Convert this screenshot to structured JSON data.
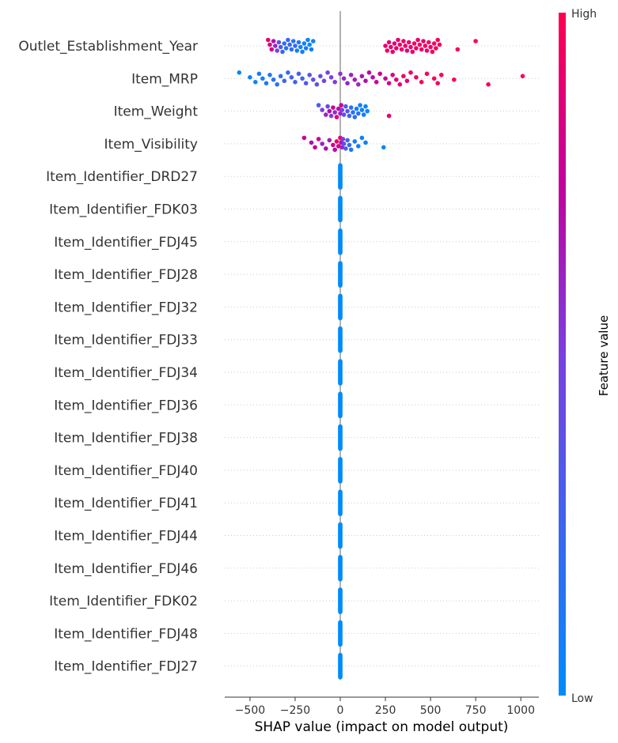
{
  "chart_data": {
    "type": "scatter",
    "subtype": "shap-beeswarm",
    "xlabel": "SHAP value (impact on model output)",
    "xlim": [
      -640,
      1100
    ],
    "xticks": [
      -500,
      -250,
      0,
      250,
      500,
      750,
      1000
    ],
    "xtick_labels": [
      "−500",
      "−250",
      "0",
      "250",
      "500",
      "750",
      "1000"
    ],
    "colorbar": {
      "title": "Feature value",
      "high_label": "High",
      "low_label": "Low",
      "low_color": "#008bfb",
      "high_color": "#ff0051"
    },
    "features": [
      "Outlet_Establishment_Year",
      "Item_MRP",
      "Item_Weight",
      "Item_Visibility",
      "Item_Identifier_DRD27",
      "Item_Identifier_FDK03",
      "Item_Identifier_FDJ45",
      "Item_Identifier_FDJ28",
      "Item_Identifier_FDJ32",
      "Item_Identifier_FDJ33",
      "Item_Identifier_FDJ34",
      "Item_Identifier_FDJ36",
      "Item_Identifier_FDJ38",
      "Item_Identifier_FDJ40",
      "Item_Identifier_FDJ41",
      "Item_Identifier_FDJ44",
      "Item_Identifier_FDJ46",
      "Item_Identifier_FDK02",
      "Item_Identifier_FDJ48",
      "Item_Identifier_FDJ27"
    ],
    "points": [
      [
        [
          -400,
          0.9
        ],
        [
          -390,
          0.85
        ],
        [
          -380,
          0.8
        ],
        [
          -370,
          0.7
        ],
        [
          -360,
          0.6
        ],
        [
          -350,
          0.5
        ],
        [
          -340,
          0.4
        ],
        [
          -330,
          0.3
        ],
        [
          -320,
          0.25
        ],
        [
          -310,
          0.2
        ],
        [
          -300,
          0.15
        ],
        [
          -290,
          0.2
        ],
        [
          -280,
          0.25
        ],
        [
          -270,
          0.2
        ],
        [
          -260,
          0.15
        ],
        [
          -250,
          0.2
        ],
        [
          -240,
          0.1
        ],
        [
          -230,
          0.15
        ],
        [
          -220,
          0.1
        ],
        [
          -210,
          0.05
        ],
        [
          -200,
          0.05
        ],
        [
          -190,
          0.1
        ],
        [
          -180,
          0.05
        ],
        [
          -170,
          0.0
        ],
        [
          -160,
          0.1
        ],
        [
          -150,
          0.05
        ],
        [
          250,
          0.9
        ],
        [
          260,
          0.95
        ],
        [
          270,
          0.9
        ],
        [
          280,
          0.92
        ],
        [
          290,
          0.9
        ],
        [
          300,
          0.85
        ],
        [
          310,
          0.92
        ],
        [
          320,
          0.88
        ],
        [
          330,
          0.95
        ],
        [
          340,
          0.9
        ],
        [
          350,
          0.93
        ],
        [
          360,
          0.9
        ],
        [
          370,
          0.88
        ],
        [
          380,
          0.92
        ],
        [
          390,
          0.95
        ],
        [
          400,
          0.9
        ],
        [
          410,
          0.93
        ],
        [
          420,
          0.92
        ],
        [
          430,
          0.9
        ],
        [
          440,
          0.95
        ],
        [
          450,
          0.92
        ],
        [
          460,
          0.9
        ],
        [
          470,
          0.94
        ],
        [
          480,
          0.93
        ],
        [
          490,
          0.96
        ],
        [
          500,
          0.94
        ],
        [
          510,
          0.95
        ],
        [
          520,
          0.96
        ],
        [
          530,
          0.97
        ],
        [
          540,
          0.95
        ],
        [
          550,
          0.97
        ],
        [
          650,
          0.98
        ],
        [
          750,
          0.99
        ]
      ],
      [
        [
          -560,
          0.02
        ],
        [
          -500,
          0.05
        ],
        [
          -470,
          0.05
        ],
        [
          -450,
          0.1
        ],
        [
          -430,
          0.1
        ],
        [
          -410,
          0.12
        ],
        [
          -390,
          0.15
        ],
        [
          -370,
          0.15
        ],
        [
          -350,
          0.2
        ],
        [
          -330,
          0.2
        ],
        [
          -310,
          0.25
        ],
        [
          -290,
          0.22
        ],
        [
          -270,
          0.28
        ],
        [
          -250,
          0.25
        ],
        [
          -230,
          0.3
        ],
        [
          -210,
          0.28
        ],
        [
          -190,
          0.32
        ],
        [
          -170,
          0.35
        ],
        [
          -150,
          0.38
        ],
        [
          -130,
          0.4
        ],
        [
          -110,
          0.42
        ],
        [
          -90,
          0.45
        ],
        [
          -70,
          0.48
        ],
        [
          -50,
          0.5
        ],
        [
          -30,
          0.52
        ],
        [
          0,
          0.55
        ],
        [
          20,
          0.58
        ],
        [
          40,
          0.6
        ],
        [
          60,
          0.62
        ],
        [
          80,
          0.65
        ],
        [
          100,
          0.6
        ],
        [
          120,
          0.68
        ],
        [
          140,
          0.7
        ],
        [
          160,
          0.72
        ],
        [
          180,
          0.7
        ],
        [
          200,
          0.75
        ],
        [
          220,
          0.78
        ],
        [
          250,
          0.8
        ],
        [
          270,
          0.82
        ],
        [
          290,
          0.85
        ],
        [
          310,
          0.88
        ],
        [
          330,
          0.9
        ],
        [
          350,
          0.92
        ],
        [
          370,
          0.9
        ],
        [
          390,
          0.93
        ],
        [
          420,
          0.95
        ],
        [
          450,
          0.96
        ],
        [
          480,
          0.97
        ],
        [
          520,
          0.98
        ],
        [
          540,
          0.96
        ],
        [
          560,
          0.98
        ],
        [
          630,
          0.99
        ],
        [
          820,
          0.99
        ],
        [
          1010,
          1.0
        ]
      ],
      [
        [
          -120,
          0.3
        ],
        [
          -100,
          0.5
        ],
        [
          -80,
          0.6
        ],
        [
          -70,
          0.4
        ],
        [
          -60,
          0.7
        ],
        [
          -50,
          0.5
        ],
        [
          -40,
          0.8
        ],
        [
          -30,
          0.6
        ],
        [
          -20,
          0.9
        ],
        [
          -10,
          0.7
        ],
        [
          0,
          0.6
        ],
        [
          5,
          0.8
        ],
        [
          10,
          0.5
        ],
        [
          20,
          0.4
        ],
        [
          30,
          0.3
        ],
        [
          40,
          0.35
        ],
        [
          50,
          0.25
        ],
        [
          60,
          0.2
        ],
        [
          70,
          0.15
        ],
        [
          80,
          0.2
        ],
        [
          90,
          0.1
        ],
        [
          100,
          0.15
        ],
        [
          110,
          0.1
        ],
        [
          120,
          0.05
        ],
        [
          130,
          0.08
        ],
        [
          140,
          0.05
        ],
        [
          150,
          0.02
        ],
        [
          270,
          0.9
        ]
      ],
      [
        [
          -200,
          0.8
        ],
        [
          -160,
          0.7
        ],
        [
          -140,
          0.75
        ],
        [
          -120,
          0.8
        ],
        [
          -100,
          0.6
        ],
        [
          -80,
          0.7
        ],
        [
          -60,
          0.65
        ],
        [
          -40,
          0.8
        ],
        [
          -30,
          0.75
        ],
        [
          -20,
          0.9
        ],
        [
          -10,
          0.85
        ],
        [
          0,
          0.9
        ],
        [
          5,
          0.7
        ],
        [
          10,
          0.6
        ],
        [
          15,
          0.5
        ],
        [
          20,
          0.4
        ],
        [
          30,
          0.3
        ],
        [
          40,
          0.25
        ],
        [
          50,
          0.2
        ],
        [
          60,
          0.15
        ],
        [
          80,
          0.1
        ],
        [
          100,
          0.1
        ],
        [
          120,
          0.05
        ],
        [
          140,
          0.05
        ],
        [
          240,
          0.02
        ]
      ]
    ],
    "zero_features_value": 0
  }
}
